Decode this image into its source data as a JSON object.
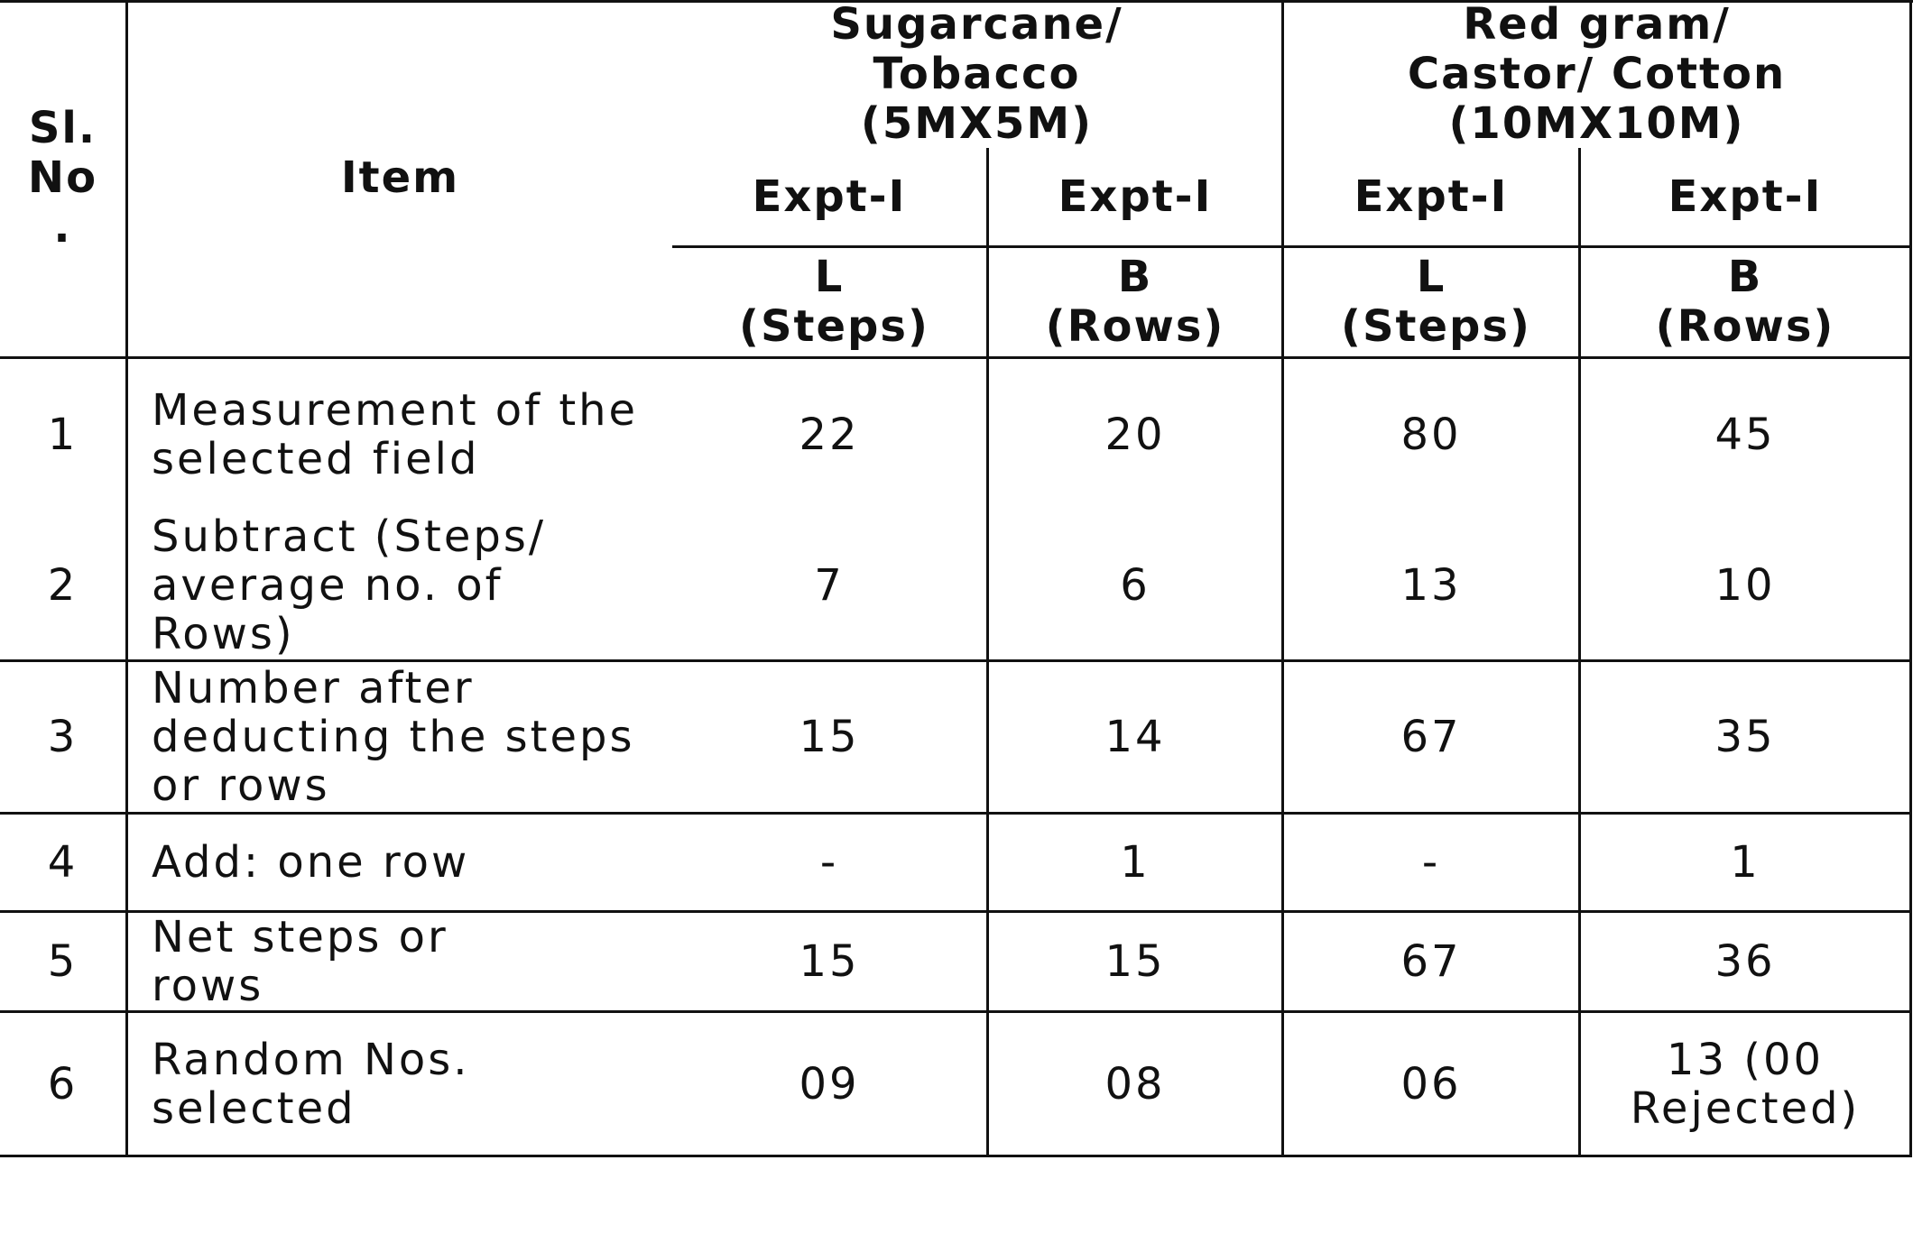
{
  "table": {
    "header": {
      "sl_no": "Sl. No .",
      "item": "Item",
      "group1": "Sugarcane/ Tobacco (5MX5M)",
      "group2": "Red gram/ Castor/ Cotton (10MX10M)",
      "expt": [
        "Expt-I",
        "Expt-I",
        "Expt-I",
        "Expt-I"
      ],
      "dims": [
        "L (Steps)",
        "B (Rows)",
        "L (Steps)",
        "B (Rows)"
      ]
    },
    "rows": [
      {
        "sl": "1",
        "item": "Measurement of the selected field",
        "values": [
          "22",
          "20",
          "80",
          "45"
        ]
      },
      {
        "sl": "2",
        "item": "Subtract (Steps/ average no. of Rows)",
        "values": [
          "7",
          "6",
          "13",
          "10"
        ]
      },
      {
        "sl": "3",
        "item": "Number after deducting the steps or rows",
        "values": [
          "15",
          "14",
          "67",
          "35"
        ]
      },
      {
        "sl": "4",
        "item": "Add: one row",
        "values": [
          "-",
          "1",
          "-",
          "1"
        ]
      },
      {
        "sl": "5",
        "item": "Net steps or rows",
        "values": [
          "15",
          "15",
          "67",
          "36"
        ]
      },
      {
        "sl": "6",
        "item": "Random Nos. selected",
        "values": [
          "09",
          "08",
          "06",
          "13 (00 Rejected)"
        ]
      }
    ]
  }
}
